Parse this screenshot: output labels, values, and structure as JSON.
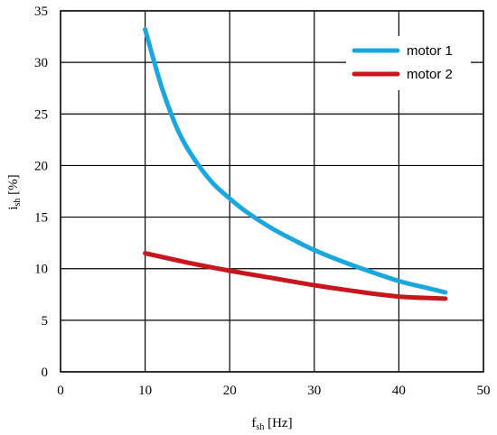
{
  "chart_data": {
    "type": "line",
    "xlabel": {
      "main": "f",
      "sub": "sh",
      "unit": " [Hz]"
    },
    "ylabel": {
      "main": "i",
      "sub": "sh",
      "unit": " [%]"
    },
    "xlim": [
      0,
      50
    ],
    "ylim": [
      0,
      35
    ],
    "xticks": [
      "0",
      "10",
      "20",
      "30",
      "40",
      "50"
    ],
    "yticks": [
      "0",
      "5",
      "10",
      "15",
      "20",
      "25",
      "30",
      "35"
    ],
    "grid": true,
    "legend_position": "top-right",
    "series": [
      {
        "name": "motor 1",
        "color": "#1aa7e0",
        "x": [
          10,
          12,
          14,
          16,
          18,
          20,
          22,
          25,
          28,
          30,
          33,
          36,
          40,
          43,
          45.5
        ],
        "y": [
          33.2,
          27.5,
          23.2,
          20.4,
          18.3,
          16.8,
          15.5,
          13.9,
          12.6,
          11.8,
          10.8,
          9.9,
          8.8,
          8.2,
          7.7
        ]
      },
      {
        "name": "motor 2",
        "color": "#c8161d",
        "x": [
          10,
          15,
          20,
          25,
          30,
          35,
          40,
          45.5
        ],
        "y": [
          11.5,
          10.6,
          9.8,
          9.1,
          8.4,
          7.8,
          7.3,
          7.1
        ]
      }
    ]
  }
}
